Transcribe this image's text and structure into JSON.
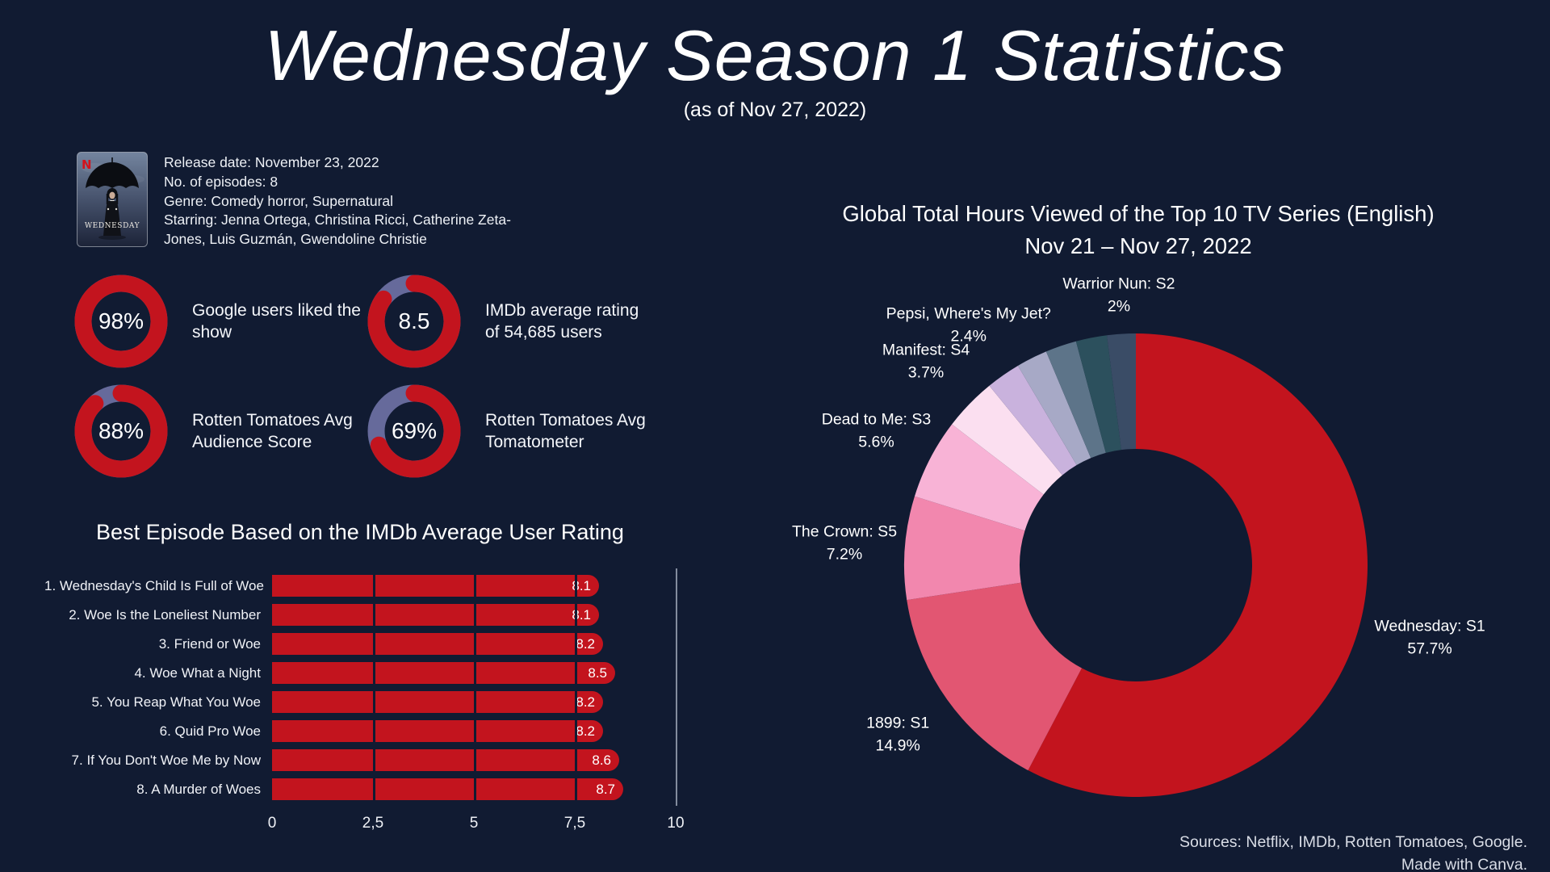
{
  "page": {
    "title": "Wednesday Season 1 Statistics",
    "subtitle": "(as of Nov 27, 2022)",
    "sources_line1": "Sources: Netflix, IMDb, Rotten Tomatoes, Google.",
    "sources_line2": "Made with Canva."
  },
  "colors": {
    "background": "#111b32",
    "accent_red": "#c3141e",
    "gauge_track_purple": "#666a9b",
    "axis_line_gray": "#98a0b2",
    "grid_line": "#111b32",
    "text_white": "#ffffff",
    "netflix_red": "#d4121c"
  },
  "show_info": {
    "poster_brand": "N",
    "poster_title": "WEDNESDAY",
    "release_date": "Release date: November 23, 2022",
    "episodes": "No. of episodes: 8",
    "genre": "Genre: Comedy horror, Supernatural",
    "starring": "Starring: Jenna Ortega, Christina Ricci, Catherine Zeta-Jones, Luis Guzmán, Gwendoline Christie"
  },
  "gauges": [
    {
      "value_label": "98%",
      "percent": 98,
      "description": "Google users liked the show"
    },
    {
      "value_label": "8.5",
      "percent": 85,
      "description": "IMDb average rating of 54,685 users"
    },
    {
      "value_label": "88%",
      "percent": 88,
      "description": "Rotten Tomatoes Avg Audience Score"
    },
    {
      "value_label": "69%",
      "percent": 69,
      "description": "Rotten Tomatoes Avg Tomatometer"
    }
  ],
  "chart_data": [
    {
      "type": "bar",
      "orientation": "horizontal",
      "title": "Best Episode Based on the IMDb Average User Rating",
      "categories": [
        "1. Wednesday's Child Is Full of Woe",
        "2. Woe Is the Loneliest Number",
        "3. Friend or Woe",
        "4. Woe What a Night",
        "5. You Reap What You Woe",
        "6. Quid Pro Woe",
        "7. If You Don't Woe Me by Now",
        "8. A Murder of Woes"
      ],
      "values": [
        8.1,
        8.1,
        8.2,
        8.5,
        8.2,
        8.2,
        8.6,
        8.7
      ],
      "value_labels": [
        "8.1",
        "8.1",
        "8.2",
        "8.5",
        "8.2",
        "8.2",
        "8.6",
        "8.7"
      ],
      "xlim": [
        0,
        10
      ],
      "x_ticks": [
        "0",
        "2,5",
        "5",
        "7,5",
        "10"
      ],
      "x_tick_values": [
        0,
        2.5,
        5,
        7.5,
        10
      ],
      "grid": true,
      "bar_color": "#c3141e"
    },
    {
      "type": "pie",
      "donut": true,
      "title_line1": "Global Total Hours Viewed of the Top 10 TV Series (English)",
      "title_line2": "Nov 21 – Nov 27, 2022",
      "start_angle_deg": 0,
      "segments": [
        {
          "label": "Wednesday: S1",
          "percent": 57.7,
          "percent_label": "57.7%",
          "color": "#c3141e",
          "labeled": true
        },
        {
          "label": "1899: S1",
          "percent": 14.9,
          "percent_label": "14.9%",
          "color": "#e25672",
          "labeled": true
        },
        {
          "label": "The Crown: S5",
          "percent": 7.2,
          "percent_label": "7.2%",
          "color": "#f287ae",
          "labeled": true
        },
        {
          "label": "Dead to Me: S3",
          "percent": 5.6,
          "percent_label": "5.6%",
          "color": "#f8b3d6",
          "labeled": true
        },
        {
          "label": "Manifest: S4",
          "percent": 3.7,
          "percent_label": "3.7%",
          "color": "#fbdff0",
          "labeled": true
        },
        {
          "label": "Pepsi, Where's My Jet?",
          "percent": 2.4,
          "percent_label": "2.4%",
          "color": "#c9b2dd",
          "labeled": true
        },
        {
          "label": "",
          "percent": 2.17,
          "percent_label": "",
          "color": "#a7a9c6",
          "labeled": false
        },
        {
          "label": "",
          "percent": 2.17,
          "percent_label": "",
          "color": "#5d7489",
          "labeled": false
        },
        {
          "label": "",
          "percent": 2.16,
          "percent_label": "",
          "color": "#2c505d",
          "labeled": false
        },
        {
          "label": "Warrior Nun: S2",
          "percent": 2.0,
          "percent_label": "2%",
          "color": "#3a4c66",
          "labeled": true
        }
      ]
    }
  ]
}
